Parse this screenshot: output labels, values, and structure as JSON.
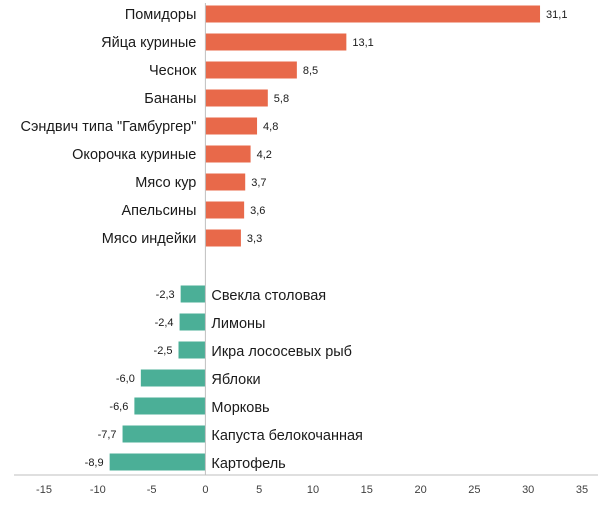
{
  "chart_data": {
    "type": "bar",
    "orientation": "horizontal",
    "title": "",
    "xlabel": "",
    "ylabel": "",
    "xlim": [
      -15,
      35
    ],
    "xticks": [
      "-15",
      "-10",
      "-5",
      "0",
      "5",
      "10",
      "15",
      "20",
      "25",
      "30",
      "35"
    ],
    "grid": false,
    "legend": "none",
    "colors": {
      "positive": "#E8694A",
      "negative": "#4BAF97",
      "axis": "#bfbfbf"
    },
    "positive_bars": [
      {
        "label": "Помидоры",
        "value": 31.1,
        "value_text": "31,1"
      },
      {
        "label": "Яйца куриные",
        "value": 13.1,
        "value_text": "13,1"
      },
      {
        "label": "Чеснок",
        "value": 8.5,
        "value_text": "8,5"
      },
      {
        "label": "Бананы",
        "value": 5.8,
        "value_text": "5,8"
      },
      {
        "label": "Сэндвич типа \"Гамбургер\"",
        "value": 4.8,
        "value_text": "4,8"
      },
      {
        "label": "Окорочка куриные",
        "value": 4.2,
        "value_text": "4,2"
      },
      {
        "label": "Мясо кур",
        "value": 3.7,
        "value_text": "3,7"
      },
      {
        "label": "Апельсины",
        "value": 3.6,
        "value_text": "3,6"
      },
      {
        "label": "Мясо индейки",
        "value": 3.3,
        "value_text": "3,3"
      }
    ],
    "negative_bars": [
      {
        "label": "Свекла столовая",
        "value": -2.3,
        "value_text": "-2,3"
      },
      {
        "label": "Лимоны",
        "value": -2.4,
        "value_text": "-2,4"
      },
      {
        "label": "Икра лососевых рыб",
        "value": -2.5,
        "value_text": "-2,5"
      },
      {
        "label": "Яблоки",
        "value": -6.0,
        "value_text": "-6,0"
      },
      {
        "label": "Морковь",
        "value": -6.6,
        "value_text": "-6,6"
      },
      {
        "label": "Капуста белокочанная",
        "value": -7.7,
        "value_text": "-7,7"
      },
      {
        "label": "Картофель",
        "value": -8.9,
        "value_text": "-8,9"
      }
    ]
  }
}
